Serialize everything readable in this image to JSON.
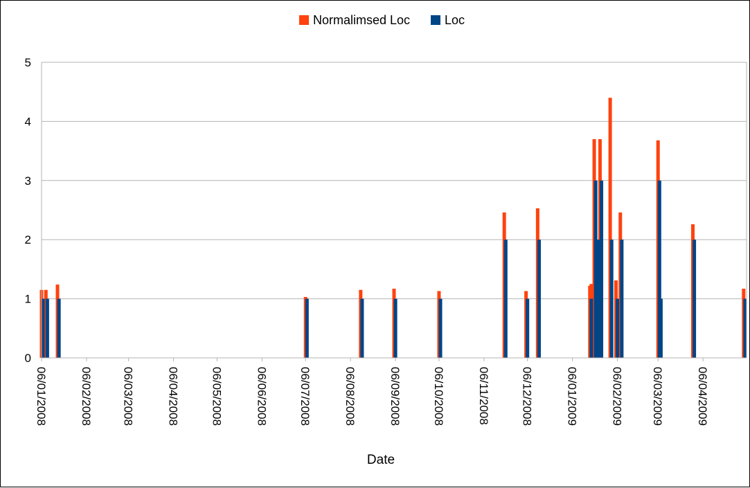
{
  "chart_data": {
    "type": "bar",
    "title": "",
    "xlabel": "Date",
    "ylabel": "",
    "ylim": [
      0,
      5
    ],
    "yticks": [
      0,
      1,
      2,
      3,
      4,
      5
    ],
    "grid": "horizontal",
    "legend_position": "top-center",
    "x_axis_type": "date",
    "x_range": [
      "2008-01-06",
      "2009-05-06"
    ],
    "xtick_labels": [
      "06/01/2008",
      "06/02/2008",
      "06/03/2008",
      "06/04/2008",
      "06/05/2008",
      "06/06/2008",
      "06/07/2008",
      "06/08/2008",
      "06/09/2008",
      "06/10/2008",
      "06/11/2008",
      "06/12/2008",
      "06/01/2009",
      "06/02/2009",
      "06/03/2009",
      "06/04/2009"
    ],
    "xtick_dates": [
      "2008-01-06",
      "2008-02-06",
      "2008-03-06",
      "2008-04-06",
      "2008-05-06",
      "2008-06-06",
      "2008-07-06",
      "2008-08-06",
      "2008-09-06",
      "2008-10-06",
      "2008-11-06",
      "2008-12-06",
      "2009-01-06",
      "2009-02-06",
      "2009-03-06",
      "2009-04-06"
    ],
    "series": [
      {
        "name": "Normalimsed Loc",
        "color": "#ff420e",
        "points": [
          {
            "date": "2008-01-06",
            "value": 1.15
          },
          {
            "date": "2008-01-09",
            "value": 1.15
          },
          {
            "date": "2008-01-17",
            "value": 1.24
          },
          {
            "date": "2008-07-06",
            "value": 1.03
          },
          {
            "date": "2008-08-13",
            "value": 1.15
          },
          {
            "date": "2008-09-05",
            "value": 1.17
          },
          {
            "date": "2008-10-06",
            "value": 1.13
          },
          {
            "date": "2008-11-20",
            "value": 2.46
          },
          {
            "date": "2008-12-05",
            "value": 1.13
          },
          {
            "date": "2008-12-13",
            "value": 2.53
          },
          {
            "date": "2009-01-18",
            "value": 1.22
          },
          {
            "date": "2009-01-19",
            "value": 1.25
          },
          {
            "date": "2009-01-21",
            "value": 3.7
          },
          {
            "date": "2009-01-25",
            "value": 3.7
          },
          {
            "date": "2009-02-01",
            "value": 4.4
          },
          {
            "date": "2009-02-05",
            "value": 1.31
          },
          {
            "date": "2009-02-08",
            "value": 2.46
          },
          {
            "date": "2009-03-06",
            "value": 3.68
          },
          {
            "date": "2009-03-30",
            "value": 2.26
          },
          {
            "date": "2009-05-04",
            "value": 1.17
          }
        ]
      },
      {
        "name": "Loc",
        "color": "#004586",
        "points": [
          {
            "date": "2008-01-07",
            "value": 1
          },
          {
            "date": "2008-01-10",
            "value": 1
          },
          {
            "date": "2008-01-18",
            "value": 1
          },
          {
            "date": "2008-07-07",
            "value": 1
          },
          {
            "date": "2008-08-14",
            "value": 1
          },
          {
            "date": "2008-09-06",
            "value": 1
          },
          {
            "date": "2008-10-07",
            "value": 1
          },
          {
            "date": "2008-11-21",
            "value": 2
          },
          {
            "date": "2008-12-06",
            "value": 1
          },
          {
            "date": "2008-12-14",
            "value": 2
          },
          {
            "date": "2009-01-19",
            "value": 1
          },
          {
            "date": "2009-01-22",
            "value": 3
          },
          {
            "date": "2009-01-24",
            "value": 2
          },
          {
            "date": "2009-01-26",
            "value": 3
          },
          {
            "date": "2009-02-02",
            "value": 2
          },
          {
            "date": "2009-02-06",
            "value": 1
          },
          {
            "date": "2009-02-09",
            "value": 2
          },
          {
            "date": "2009-03-07",
            "value": 3
          },
          {
            "date": "2009-03-08",
            "value": 1
          },
          {
            "date": "2009-03-31",
            "value": 2
          },
          {
            "date": "2009-05-05",
            "value": 1
          }
        ]
      }
    ]
  }
}
